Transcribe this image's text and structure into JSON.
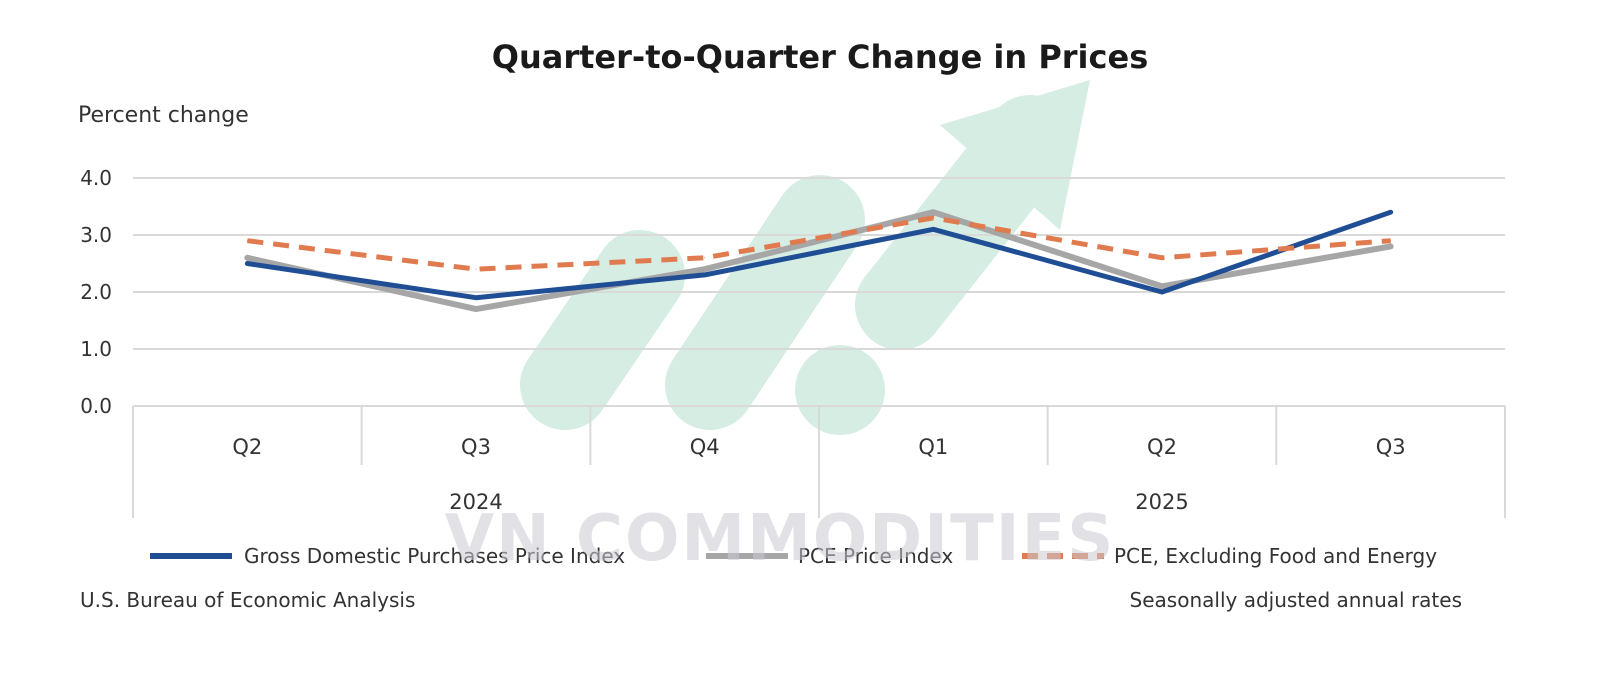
{
  "chart_data": {
    "type": "line",
    "title": "Quarter-to-Quarter Change in Prices",
    "ylabel": "Percent change",
    "ylim": [
      0,
      4
    ],
    "yticks": [
      "0.0",
      "1.0",
      "2.0",
      "3.0",
      "4.0"
    ],
    "grid": true,
    "categories": [
      "Q2",
      "Q3",
      "Q4",
      "Q1",
      "Q2",
      "Q3"
    ],
    "years": [
      "2024",
      "2025"
    ],
    "legend_position": "bottom",
    "series": [
      {
        "name": "Gross Domestic Purchases Price Index",
        "values": [
          2.5,
          1.9,
          2.3,
          3.1,
          2.0,
          3.4
        ],
        "color": "#1f4e95",
        "style": "solid"
      },
      {
        "name": "PCE Price Index",
        "values": [
          2.6,
          1.7,
          2.4,
          3.4,
          2.1,
          2.8
        ],
        "color": "#a6a6a6",
        "style": "solid"
      },
      {
        "name": "PCE, Excluding Food and Energy",
        "values": [
          2.9,
          2.4,
          2.6,
          3.3,
          2.6,
          2.9
        ],
        "color": "#e07b4f",
        "style": "dashed"
      }
    ]
  },
  "footer": {
    "source": "U.S. Bureau of Economic Analysis",
    "note": "Seasonally adjusted annual rates"
  },
  "watermark": {
    "text": "VN COMMODITIES",
    "color": "#cfead9"
  }
}
